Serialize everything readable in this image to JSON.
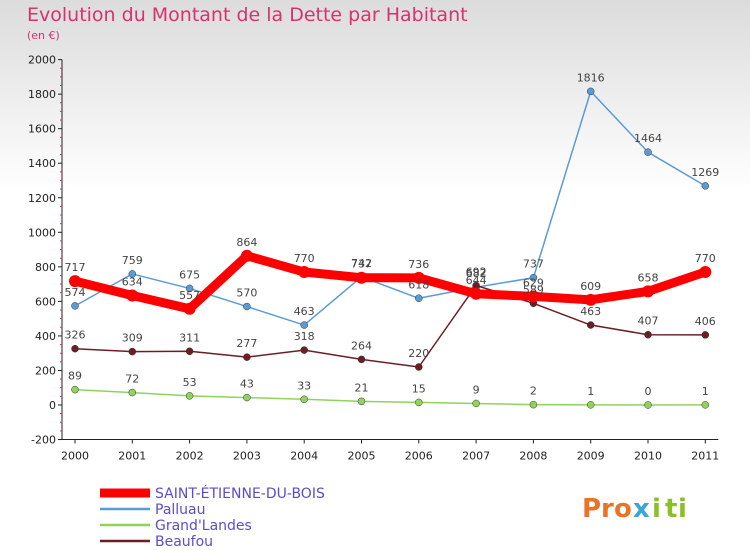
{
  "header": {
    "title": "Evolution du Montant de la Dette par Habitant",
    "subtitle": "(en €)"
  },
  "brand": {
    "letters": [
      "P",
      "r",
      "o",
      "x",
      "i",
      "t",
      "i"
    ],
    "colors": [
      "#e8742a",
      "#e8742a",
      "#e8742a",
      "#3aa5d6",
      "#8cbf26",
      "#8cbf26",
      "#8cbf26"
    ]
  },
  "chart_data": {
    "type": "line",
    "title": "Evolution du Montant de la Dette par Habitant",
    "subtitle": "(en €)",
    "categories": [
      "2000",
      "2001",
      "2002",
      "2003",
      "2004",
      "2005",
      "2006",
      "2007",
      "2008",
      "2009",
      "2010",
      "2011"
    ],
    "yticks": [
      "-200",
      "0",
      "200",
      "400",
      "600",
      "800",
      "1000",
      "1200",
      "1400",
      "1600",
      "1800",
      "2000"
    ],
    "ylim": [
      -200,
      2000
    ],
    "grid": false,
    "legend_position": "bottom-left",
    "series": [
      {
        "name": "SAINT-ÉTIENNE-DU-BOIS",
        "color": "#ff0000",
        "values": [
          717,
          634,
          557,
          864,
          770,
          737,
          736,
          644,
          629,
          609,
          658,
          770
        ],
        "thick": true
      },
      {
        "name": "Palluau",
        "color": "#5b9bd5",
        "values": [
          574,
          759,
          675,
          570,
          463,
          742,
          618,
          682,
          737,
          1816,
          1464,
          1269
        ]
      },
      {
        "name": "Grand'Landes",
        "color": "#8fd35b",
        "values": [
          89,
          72,
          53,
          43,
          33,
          21,
          15,
          9,
          2,
          1,
          0,
          1
        ]
      },
      {
        "name": "Beaufou",
        "color": "#6b1f25",
        "values": [
          326,
          309,
          311,
          277,
          318,
          264,
          220,
          692,
          589,
          463,
          407,
          406
        ]
      }
    ],
    "labels_shown": {
      "SAINT-ÉTIENNE-DU-BOIS": [
        "717",
        "634",
        "557",
        "864",
        "770",
        "737",
        "736",
        "644",
        "629",
        "609",
        "658",
        "770"
      ],
      "Palluau": [
        "574",
        "759",
        "675",
        "570",
        "463",
        "742",
        "618",
        "682",
        "737",
        "1816",
        "1464",
        "1269"
      ],
      "Grand'Landes": [
        "89",
        "72",
        "53",
        "43",
        "33",
        "21",
        "15",
        "9",
        "2",
        "1",
        "0",
        "1"
      ],
      "Beaufou": [
        "326",
        "309",
        "311",
        "277",
        "318",
        "264",
        "220",
        "692",
        "589",
        "463",
        "407",
        "406"
      ]
    }
  }
}
